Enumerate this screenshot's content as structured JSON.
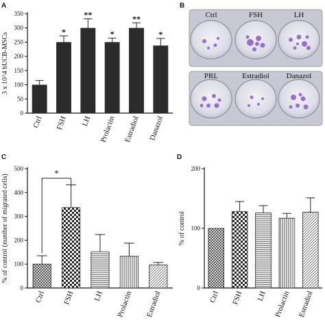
{
  "panels": [
    {
      "letter": "A"
    },
    {
      "letter": "B"
    },
    {
      "letter": "C"
    },
    {
      "letter": "D"
    }
  ],
  "photo": {
    "top_row": [
      "Ctrl",
      "FSH",
      "LH"
    ],
    "bottom_row": [
      "PRL",
      "Estradiol",
      "Danazol"
    ]
  },
  "chart_data": [
    {
      "panel": "A",
      "type": "bar",
      "categories": [
        "Ctrl",
        "FSH",
        "LH",
        "Prolactin",
        "Estradiol",
        "Danazol"
      ],
      "values": [
        100,
        250,
        300,
        250,
        300,
        238
      ],
      "errors": [
        15,
        22,
        32,
        14,
        18,
        25
      ],
      "significance": [
        "",
        "*",
        "**",
        "*",
        "**",
        "*"
      ],
      "ylabel": "3 x 10^4 hUCB-MSCs",
      "ylim": [
        0,
        350
      ],
      "yticks": [
        0,
        50,
        100,
        150,
        200,
        250,
        300,
        350
      ],
      "fill": "#2b2b2b"
    },
    {
      "panel": "C",
      "type": "bar",
      "categories": [
        "Ctrl",
        "FSH",
        "LH",
        "Prolactin",
        "Estradiol"
      ],
      "values": [
        100,
        337,
        152,
        133,
        97
      ],
      "errors": [
        35,
        95,
        72,
        55,
        10
      ],
      "patterns": [
        "crosshatch",
        "checker",
        "hlines",
        "vlines",
        "diag"
      ],
      "ylabel": "% of control (number of migrated cells)",
      "ylim": [
        0,
        500
      ],
      "yticks": [
        0,
        100,
        200,
        300,
        400,
        500
      ],
      "comparison": {
        "from": "Ctrl",
        "to": "FSH",
        "label": "*"
      }
    },
    {
      "panel": "D",
      "type": "bar",
      "categories": [
        "Ctrl",
        "FSH",
        "LH",
        "Prolactin",
        "Estradiol"
      ],
      "values": [
        100,
        128,
        126,
        117,
        127
      ],
      "errors": [
        0,
        17,
        12,
        8,
        24
      ],
      "patterns": [
        "crosshatch",
        "checker",
        "hlines",
        "vlines",
        "diag"
      ],
      "ylabel": "% of control",
      "ylim": [
        0,
        200
      ],
      "yticks": [
        0,
        100,
        200
      ]
    }
  ]
}
